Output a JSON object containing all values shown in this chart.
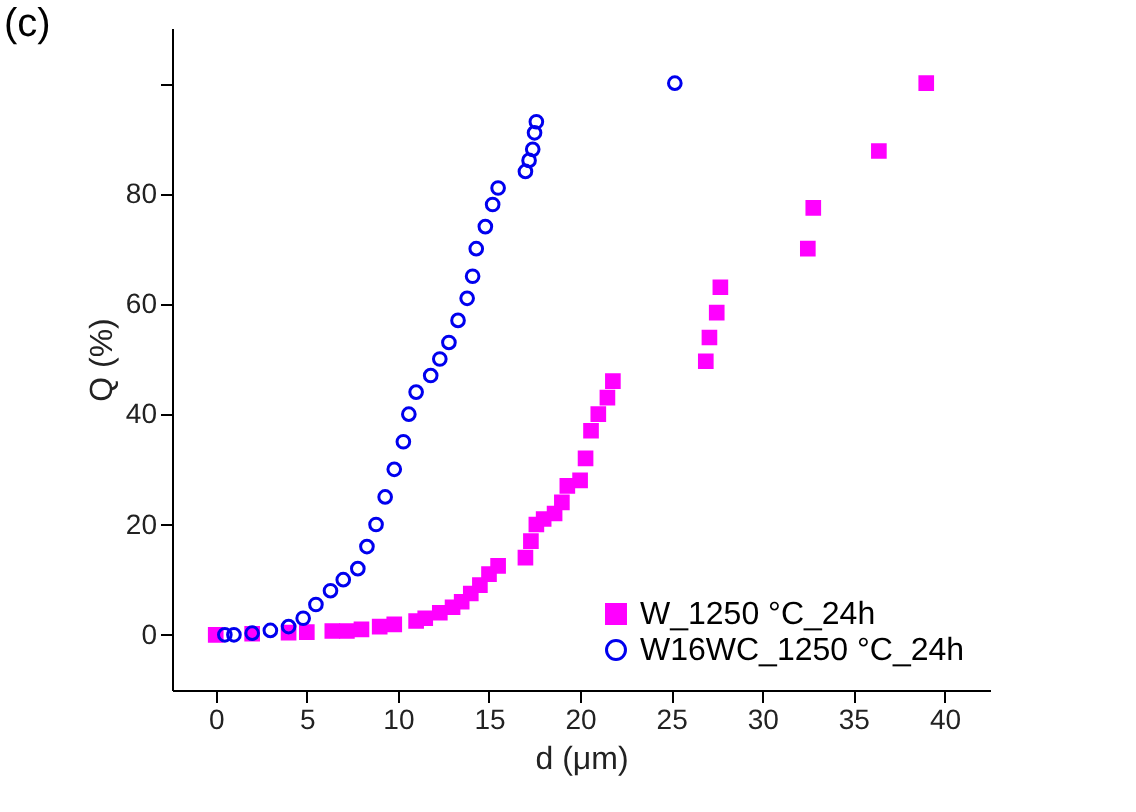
{
  "chart_data": {
    "type": "scatter",
    "xlabel": "d (μm)",
    "ylabel": "Q (%)",
    "annotations": [
      "(c)"
    ],
    "xlim": [
      -2.4,
      42.5
    ],
    "xticks": [
      0,
      5,
      10,
      15,
      20,
      25,
      30,
      35,
      40
    ],
    "ylim": [
      -10,
      110
    ],
    "yticks": [
      0,
      20,
      40,
      60,
      80,
      {
        "value": 100,
        "label": null
      }
    ],
    "grid": false,
    "legend": "bottom right",
    "series": [
      {
        "name": "W_1250 °C_24h",
        "color": "#ff00ff",
        "marker": "square",
        "x": [
          0,
          2,
          4,
          5,
          6.4,
          7.2,
          8,
          9,
          9.8,
          11,
          11.5,
          12.3,
          13,
          13.5,
          14,
          14.5,
          15,
          15.5,
          17,
          17.3,
          17.6,
          18,
          18.6,
          19,
          19.3,
          20,
          20.3,
          20.6,
          21,
          21.5,
          21.8,
          26.9,
          27.1,
          27.5,
          27.7,
          32.5,
          32.8,
          36.4,
          39
        ],
        "values": [
          0,
          0.2,
          0.4,
          0.5,
          0.7,
          0.7,
          1,
          1.5,
          1.9,
          2.5,
          3,
          4,
          5,
          6,
          7.5,
          9,
          11,
          12.5,
          14,
          17,
          20,
          21,
          22,
          24,
          27,
          28,
          32,
          37,
          40,
          43,
          46,
          49.6,
          53.9,
          58.4,
          63,
          70,
          77.4,
          87.7,
          100
        ]
      },
      {
        "name": "W16WC_1250 °C_24h",
        "color": "#0000ee",
        "marker": "circle_open",
        "x": [
          0.5,
          1,
          2,
          3,
          4,
          4.8,
          5.5,
          6.3,
          7,
          7.8,
          8.3,
          8.8,
          9.3,
          9.8,
          10.3,
          10.6,
          11,
          11.8,
          12.3,
          12.8,
          13.3,
          13.8,
          14.1,
          14.3,
          14.8,
          15.2,
          15.5,
          17,
          17.2,
          17.4,
          17.5,
          17.6,
          25.2
        ],
        "values": [
          0,
          0,
          0.3,
          0.8,
          1.5,
          3,
          5.5,
          8,
          10,
          12,
          16,
          20,
          25,
          30,
          35,
          40,
          44,
          47,
          50,
          53,
          57,
          61,
          65,
          70,
          74,
          78,
          81,
          84,
          86,
          88,
          91,
          93,
          100
        ]
      }
    ]
  }
}
